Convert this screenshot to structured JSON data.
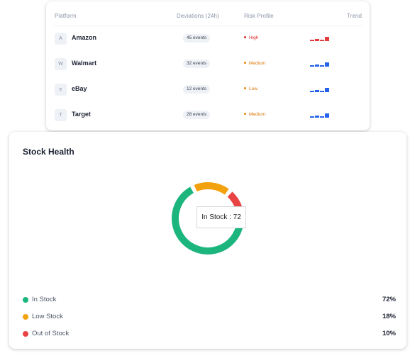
{
  "platform_table": {
    "headers": {
      "platform": "Platform",
      "deviations": "Deviations (24h)",
      "risk": "Risk Profile",
      "trend": "Trend"
    },
    "rows": [
      {
        "initial": "A",
        "name": "Amazon",
        "events": "45 events",
        "risk": "High",
        "risk_level": "high",
        "trend_color": "red",
        "trend_icon": "bar-trend-icon"
      },
      {
        "initial": "W",
        "name": "Walmart",
        "events": "32 events",
        "risk": "Medium",
        "risk_level": "medium",
        "trend_color": "blue",
        "trend_icon": "bar-trend-icon"
      },
      {
        "initial": "e",
        "name": "eBay",
        "events": "12 events",
        "risk": "Low",
        "risk_level": "low",
        "trend_color": "blue",
        "trend_icon": "bar-trend-icon"
      },
      {
        "initial": "T",
        "name": "Target",
        "events": "28 events",
        "risk": "Medium",
        "risk_level": "medium",
        "trend_color": "blue",
        "trend_icon": "bar-trend-icon"
      }
    ]
  },
  "stock_health": {
    "title": "Stock Health",
    "tooltip": "In Stock : 72",
    "legend": [
      {
        "label": "In Stock",
        "value": "72%",
        "color": "#1bb57d"
      },
      {
        "label": "Low Stock",
        "value": "18%",
        "color": "#f2a20f"
      },
      {
        "label": "Out of Stock",
        "value": "10%",
        "color": "#e94444"
      }
    ]
  },
  "chart_data": {
    "type": "pie",
    "categories": [
      "In Stock",
      "Low Stock",
      "Out of Stock"
    ],
    "values": [
      72,
      18,
      10
    ],
    "colors": [
      "#1bb57d",
      "#f2a20f",
      "#e94444"
    ],
    "title": "Stock Health"
  }
}
